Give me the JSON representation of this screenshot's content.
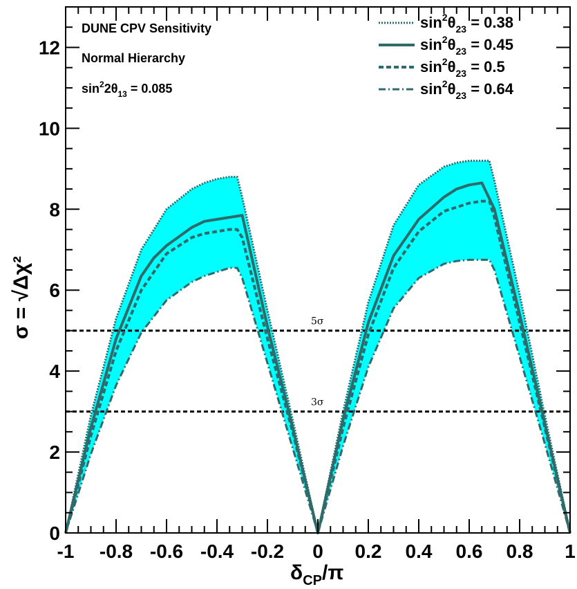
{
  "chart_data": {
    "type": "line",
    "title": "",
    "annotations": {
      "line1": "DUNE CPV Sensitivity",
      "line2": "Normal Hierarchy",
      "theta13_prefix": "sin",
      "theta13_sup": "2",
      "theta13_mid": "2θ",
      "theta13_sub": "13",
      "theta13_value": " = 0.085"
    },
    "xlabel": {
      "main": "δ",
      "sub": "CP",
      "tail": "/π"
    },
    "ylabel": "σ = √Δχ²",
    "xlim": [
      -1,
      1
    ],
    "ylim": [
      0,
      13
    ],
    "x_ticks": [
      "-1",
      "-0.8",
      "-0.6",
      "-0.4",
      "-0.2",
      "0",
      "0.2",
      "0.4",
      "0.6",
      "0.8",
      "1"
    ],
    "y_ticks": [
      "0",
      "2",
      "4",
      "6",
      "8",
      "10",
      "12"
    ],
    "band_color": "#00ffff",
    "line_color": "#2f6b6b",
    "reference_lines": [
      {
        "y": 5,
        "label": "5σ"
      },
      {
        "y": 3,
        "label": "3σ"
      }
    ],
    "series": [
      {
        "name": "0.38",
        "style": "dotted",
        "x": [
          -1,
          -0.9,
          -0.8,
          -0.7,
          -0.6,
          -0.5,
          -0.45,
          -0.4,
          -0.35,
          -0.32,
          -0.3,
          -0.2,
          -0.1,
          0,
          0.1,
          0.2,
          0.3,
          0.4,
          0.5,
          0.55,
          0.6,
          0.65,
          0.68,
          0.7,
          0.8,
          0.9,
          1
        ],
        "y": [
          0,
          2.9,
          5.3,
          7.0,
          8.0,
          8.5,
          8.65,
          8.75,
          8.8,
          8.8,
          8.3,
          5.5,
          2.8,
          0,
          3.0,
          5.7,
          7.6,
          8.6,
          9.05,
          9.15,
          9.2,
          9.2,
          9.2,
          8.7,
          5.9,
          2.9,
          0
        ]
      },
      {
        "name": "0.45",
        "style": "solid",
        "x": [
          -1,
          -0.9,
          -0.8,
          -0.7,
          -0.65,
          -0.6,
          -0.5,
          -0.45,
          -0.4,
          -0.35,
          -0.3,
          -0.2,
          -0.1,
          0,
          0.1,
          0.2,
          0.3,
          0.4,
          0.5,
          0.55,
          0.6,
          0.65,
          0.7,
          0.8,
          0.9,
          1
        ],
        "y": [
          0,
          2.6,
          4.8,
          6.35,
          6.8,
          7.1,
          7.55,
          7.7,
          7.75,
          7.8,
          7.85,
          5.1,
          2.6,
          0,
          2.8,
          5.2,
          6.85,
          7.75,
          8.3,
          8.5,
          8.6,
          8.65,
          8.0,
          5.4,
          2.7,
          0
        ]
      },
      {
        "name": "0.5",
        "style": "dashed",
        "x": [
          -1,
          -0.9,
          -0.8,
          -0.7,
          -0.6,
          -0.5,
          -0.45,
          -0.4,
          -0.35,
          -0.32,
          -0.3,
          -0.2,
          -0.1,
          0,
          0.1,
          0.2,
          0.3,
          0.4,
          0.5,
          0.55,
          0.6,
          0.65,
          0.68,
          0.7,
          0.8,
          0.9,
          1
        ],
        "y": [
          0,
          2.4,
          4.5,
          6.0,
          6.9,
          7.3,
          7.4,
          7.45,
          7.5,
          7.5,
          7.3,
          4.8,
          2.5,
          0,
          2.6,
          4.9,
          6.55,
          7.45,
          7.95,
          8.05,
          8.15,
          8.2,
          8.2,
          7.8,
          5.2,
          2.6,
          0
        ]
      },
      {
        "name": "0.64",
        "style": "dashdot",
        "x": [
          -1,
          -0.9,
          -0.8,
          -0.7,
          -0.6,
          -0.5,
          -0.45,
          -0.4,
          -0.35,
          -0.32,
          -0.3,
          -0.2,
          -0.1,
          0,
          0.1,
          0.2,
          0.3,
          0.4,
          0.5,
          0.55,
          0.6,
          0.65,
          0.68,
          0.7,
          0.8,
          0.9,
          1
        ],
        "y": [
          0,
          1.95,
          3.65,
          4.95,
          5.75,
          6.2,
          6.35,
          6.45,
          6.55,
          6.55,
          6.3,
          4.2,
          2.1,
          0,
          2.15,
          4.1,
          5.55,
          6.3,
          6.65,
          6.72,
          6.75,
          6.75,
          6.75,
          6.5,
          4.35,
          2.2,
          0
        ]
      }
    ],
    "legend": {
      "position": "top-right",
      "prefix": "sin",
      "sup": "2",
      "theta": "θ",
      "sub": "23",
      "eq": " = "
    }
  }
}
